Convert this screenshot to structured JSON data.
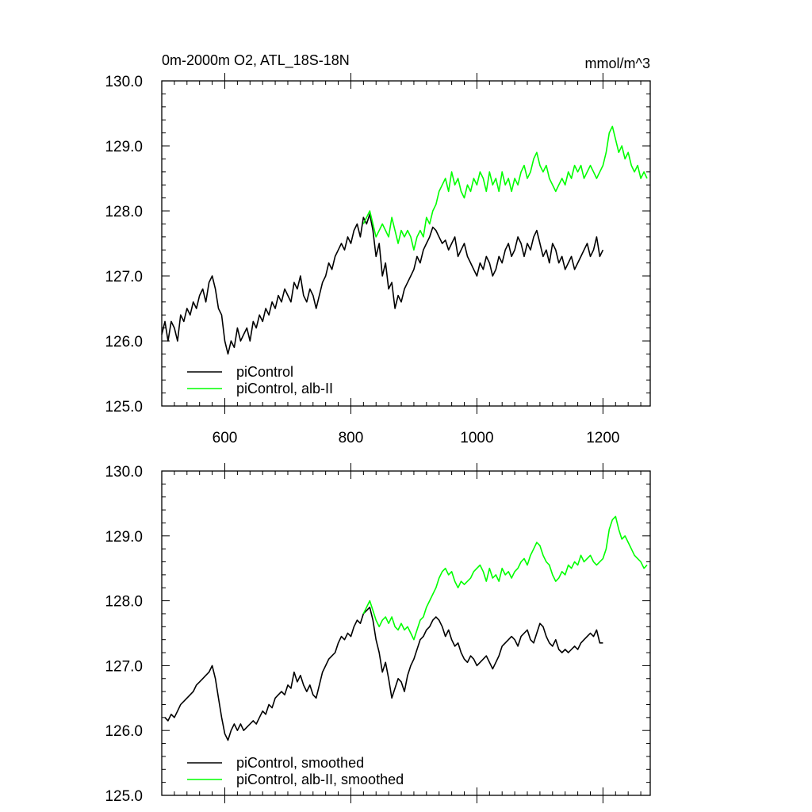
{
  "chart_data": [
    {
      "type": "line",
      "title": "0m-2000m O2, ATL_18S-18N",
      "units": "mmol/m^3",
      "xlim": [
        500,
        1275
      ],
      "ylim": [
        125.0,
        130.0
      ],
      "x_ticks": [
        600,
        800,
        1000,
        1200
      ],
      "x_tick_labels": [
        "600",
        "800",
        "1000",
        "1200"
      ],
      "y_ticks": [
        125.0,
        126.0,
        127.0,
        128.0,
        129.0,
        130.0
      ],
      "y_tick_labels": [
        "125.0",
        "126.0",
        "127.0",
        "128.0",
        "129.0",
        "130.0"
      ],
      "legend_position": "lower-left",
      "series": [
        {
          "name": "piControl",
          "color": "#000000",
          "x": [
            500,
            505,
            510,
            515,
            520,
            525,
            530,
            535,
            540,
            545,
            550,
            555,
            560,
            565,
            570,
            575,
            580,
            585,
            590,
            595,
            600,
            605,
            610,
            615,
            620,
            625,
            630,
            635,
            640,
            645,
            650,
            655,
            660,
            665,
            670,
            675,
            680,
            685,
            690,
            695,
            700,
            705,
            710,
            715,
            720,
            725,
            730,
            735,
            740,
            745,
            750,
            755,
            760,
            765,
            770,
            775,
            780,
            785,
            790,
            795,
            800,
            805,
            810,
            815,
            820,
            825,
            830,
            835,
            840,
            845,
            850,
            855,
            860,
            865,
            870,
            875,
            880,
            885,
            890,
            895,
            900,
            905,
            910,
            915,
            920,
            925,
            930,
            935,
            940,
            945,
            950,
            955,
            960,
            965,
            970,
            975,
            980,
            985,
            990,
            995,
            1000,
            1005,
            1010,
            1015,
            1020,
            1025,
            1030,
            1035,
            1040,
            1045,
            1050,
            1055,
            1060,
            1065,
            1070,
            1075,
            1080,
            1085,
            1090,
            1095,
            1100,
            1105,
            1110,
            1115,
            1120,
            1125,
            1130,
            1135,
            1140,
            1145,
            1150,
            1155,
            1160,
            1165,
            1170,
            1175,
            1180,
            1185,
            1190,
            1195,
            1200
          ],
          "y": [
            126.1,
            126.3,
            126.0,
            126.3,
            126.2,
            126.0,
            126.4,
            126.3,
            126.5,
            126.4,
            126.6,
            126.5,
            126.7,
            126.8,
            126.6,
            126.9,
            127.0,
            126.8,
            126.5,
            126.4,
            126.0,
            125.8,
            126.0,
            125.9,
            126.2,
            126.0,
            126.1,
            126.2,
            126.0,
            126.3,
            126.2,
            126.4,
            126.3,
            126.5,
            126.4,
            126.6,
            126.5,
            126.7,
            126.6,
            126.8,
            126.7,
            126.6,
            126.9,
            126.8,
            127.0,
            126.7,
            126.6,
            126.8,
            126.7,
            126.5,
            126.7,
            126.9,
            127.0,
            127.2,
            127.1,
            127.3,
            127.4,
            127.5,
            127.4,
            127.6,
            127.5,
            127.7,
            127.8,
            127.6,
            127.9,
            127.8,
            127.95,
            127.7,
            127.3,
            127.5,
            127.0,
            127.2,
            126.8,
            126.9,
            126.5,
            126.7,
            126.6,
            126.8,
            126.9,
            127.0,
            127.1,
            127.3,
            127.2,
            127.4,
            127.5,
            127.6,
            127.75,
            127.7,
            127.6,
            127.5,
            127.55,
            127.4,
            127.5,
            127.6,
            127.3,
            127.4,
            127.5,
            127.3,
            127.2,
            127.1,
            127.0,
            127.2,
            127.1,
            127.3,
            127.2,
            127.0,
            127.1,
            127.3,
            127.2,
            127.4,
            127.5,
            127.3,
            127.4,
            127.6,
            127.5,
            127.3,
            127.5,
            127.4,
            127.6,
            127.7,
            127.5,
            127.3,
            127.4,
            127.2,
            127.5,
            127.4,
            127.2,
            127.3,
            127.1,
            127.2,
            127.3,
            127.1,
            127.2,
            127.3,
            127.4,
            127.5,
            127.3,
            127.4,
            127.6,
            127.3,
            127.4
          ]
        },
        {
          "name": "piControl, alb-II",
          "color": "#00ff00",
          "x": [
            820,
            825,
            830,
            835,
            840,
            845,
            850,
            855,
            860,
            865,
            870,
            875,
            880,
            885,
            890,
            895,
            900,
            905,
            910,
            915,
            920,
            925,
            930,
            935,
            940,
            945,
            950,
            955,
            960,
            965,
            970,
            975,
            980,
            985,
            990,
            995,
            1000,
            1005,
            1010,
            1015,
            1020,
            1025,
            1030,
            1035,
            1040,
            1045,
            1050,
            1055,
            1060,
            1065,
            1070,
            1075,
            1080,
            1085,
            1090,
            1095,
            1100,
            1105,
            1110,
            1115,
            1120,
            1125,
            1130,
            1135,
            1140,
            1145,
            1150,
            1155,
            1160,
            1165,
            1170,
            1175,
            1180,
            1185,
            1190,
            1195,
            1200,
            1205,
            1210,
            1215,
            1220,
            1225,
            1230,
            1235,
            1240,
            1245,
            1250,
            1255,
            1260,
            1265,
            1270
          ],
          "y": [
            127.8,
            127.9,
            128.0,
            127.8,
            127.6,
            127.7,
            127.8,
            127.7,
            127.6,
            127.9,
            127.7,
            127.5,
            127.7,
            127.6,
            127.7,
            127.6,
            127.4,
            127.6,
            127.7,
            127.6,
            127.9,
            127.8,
            128.0,
            128.1,
            128.3,
            128.4,
            128.5,
            128.3,
            128.6,
            128.4,
            128.5,
            128.3,
            128.2,
            128.4,
            128.3,
            128.5,
            128.4,
            128.6,
            128.5,
            128.3,
            128.6,
            128.4,
            128.5,
            128.3,
            128.6,
            128.4,
            128.5,
            128.3,
            128.5,
            128.4,
            128.6,
            128.7,
            128.5,
            128.6,
            128.8,
            128.9,
            128.7,
            128.6,
            128.7,
            128.5,
            128.4,
            128.3,
            128.4,
            128.5,
            128.4,
            128.6,
            128.5,
            128.7,
            128.6,
            128.7,
            128.5,
            128.6,
            128.7,
            128.6,
            128.5,
            128.6,
            128.7,
            128.9,
            129.2,
            129.3,
            129.1,
            128.9,
            129.0,
            128.8,
            128.9,
            128.7,
            128.6,
            128.7,
            128.5,
            128.6,
            128.5
          ]
        }
      ]
    },
    {
      "type": "line",
      "xlim": [
        500,
        1275
      ],
      "ylim": [
        125.0,
        130.0
      ],
      "x_ticks": [
        600,
        800,
        1000,
        1200
      ],
      "y_ticks": [
        125.0,
        126.0,
        127.0,
        128.0,
        129.0,
        130.0
      ],
      "y_tick_labels": [
        "125.0",
        "126.0",
        "127.0",
        "128.0",
        "129.0",
        "130.0"
      ],
      "legend_position": "lower-left",
      "series": [
        {
          "name": "piControl, smoothed",
          "color": "#000000",
          "x": [
            505,
            510,
            515,
            520,
            525,
            530,
            535,
            540,
            545,
            550,
            555,
            560,
            565,
            570,
            575,
            580,
            585,
            590,
            595,
            600,
            605,
            610,
            615,
            620,
            625,
            630,
            635,
            640,
            645,
            650,
            655,
            660,
            665,
            670,
            675,
            680,
            685,
            690,
            695,
            700,
            705,
            710,
            715,
            720,
            725,
            730,
            735,
            740,
            745,
            750,
            755,
            760,
            765,
            770,
            775,
            780,
            785,
            790,
            795,
            800,
            805,
            810,
            815,
            820,
            825,
            830,
            835,
            840,
            845,
            850,
            855,
            860,
            865,
            870,
            875,
            880,
            885,
            890,
            895,
            900,
            905,
            910,
            915,
            920,
            925,
            930,
            935,
            940,
            945,
            950,
            955,
            960,
            965,
            970,
            975,
            980,
            985,
            990,
            995,
            1000,
            1005,
            1010,
            1015,
            1020,
            1025,
            1030,
            1035,
            1040,
            1045,
            1050,
            1055,
            1060,
            1065,
            1070,
            1075,
            1080,
            1085,
            1090,
            1095,
            1100,
            1105,
            1110,
            1115,
            1120,
            1125,
            1130,
            1135,
            1140,
            1145,
            1150,
            1155,
            1160,
            1165,
            1170,
            1175,
            1180,
            1185,
            1190,
            1195,
            1200
          ],
          "y": [
            126.2,
            126.15,
            126.25,
            126.2,
            126.3,
            126.4,
            126.45,
            126.5,
            126.55,
            126.6,
            126.7,
            126.75,
            126.8,
            126.85,
            126.9,
            127.0,
            126.8,
            126.5,
            126.2,
            125.95,
            125.85,
            126.0,
            126.1,
            126.0,
            126.1,
            126.0,
            126.05,
            126.1,
            126.15,
            126.1,
            126.2,
            126.3,
            126.25,
            126.4,
            126.35,
            126.5,
            126.55,
            126.6,
            126.55,
            126.7,
            126.65,
            126.9,
            126.75,
            126.85,
            126.7,
            126.6,
            126.7,
            126.55,
            126.5,
            126.7,
            126.9,
            127.0,
            127.1,
            127.15,
            127.2,
            127.35,
            127.45,
            127.4,
            127.5,
            127.45,
            127.6,
            127.7,
            127.65,
            127.8,
            127.85,
            127.9,
            127.7,
            127.4,
            127.2,
            126.9,
            127.05,
            126.8,
            126.5,
            126.65,
            126.8,
            126.75,
            126.6,
            126.85,
            127.0,
            127.1,
            127.25,
            127.4,
            127.45,
            127.55,
            127.6,
            127.7,
            127.75,
            127.7,
            127.6,
            127.45,
            127.55,
            127.4,
            127.3,
            127.35,
            127.2,
            127.1,
            127.05,
            127.15,
            127.1,
            127.0,
            127.05,
            127.1,
            127.15,
            127.05,
            126.95,
            127.05,
            127.15,
            127.3,
            127.35,
            127.4,
            127.45,
            127.4,
            127.3,
            127.45,
            127.5,
            127.55,
            127.4,
            127.35,
            127.5,
            127.65,
            127.6,
            127.45,
            127.35,
            127.3,
            127.4,
            127.25,
            127.2,
            127.25,
            127.2,
            127.25,
            127.3,
            127.25,
            127.35,
            127.4,
            127.45,
            127.5,
            127.45,
            127.55,
            127.35,
            127.35
          ]
        },
        {
          "name": "piControl, alb-II, smoothed",
          "color": "#00ff00",
          "x": [
            820,
            825,
            830,
            835,
            840,
            845,
            850,
            855,
            860,
            865,
            870,
            875,
            880,
            885,
            890,
            895,
            900,
            905,
            910,
            915,
            920,
            925,
            930,
            935,
            940,
            945,
            950,
            955,
            960,
            965,
            970,
            975,
            980,
            985,
            990,
            995,
            1000,
            1005,
            1010,
            1015,
            1020,
            1025,
            1030,
            1035,
            1040,
            1045,
            1050,
            1055,
            1060,
            1065,
            1070,
            1075,
            1080,
            1085,
            1090,
            1095,
            1100,
            1105,
            1110,
            1115,
            1120,
            1125,
            1130,
            1135,
            1140,
            1145,
            1150,
            1155,
            1160,
            1165,
            1170,
            1175,
            1180,
            1185,
            1190,
            1195,
            1200,
            1205,
            1210,
            1215,
            1220,
            1225,
            1230,
            1235,
            1240,
            1245,
            1250,
            1255,
            1260,
            1265,
            1270
          ],
          "y": [
            127.8,
            127.9,
            128.0,
            127.85,
            127.7,
            127.6,
            127.7,
            127.75,
            127.65,
            127.75,
            127.6,
            127.55,
            127.65,
            127.55,
            127.6,
            127.5,
            127.4,
            127.55,
            127.7,
            127.75,
            127.9,
            128.0,
            128.1,
            128.2,
            128.35,
            128.45,
            128.5,
            128.4,
            128.45,
            128.3,
            128.2,
            128.3,
            128.25,
            128.3,
            128.35,
            128.45,
            128.5,
            128.55,
            128.45,
            128.3,
            128.5,
            128.35,
            128.4,
            128.3,
            128.5,
            128.4,
            128.45,
            128.35,
            128.45,
            128.5,
            128.6,
            128.65,
            128.55,
            128.7,
            128.8,
            128.9,
            128.85,
            128.7,
            128.6,
            128.55,
            128.4,
            128.3,
            128.35,
            128.45,
            128.4,
            128.55,
            128.5,
            128.6,
            128.55,
            128.7,
            128.6,
            128.65,
            128.7,
            128.6,
            128.55,
            128.6,
            128.65,
            128.8,
            129.1,
            129.25,
            129.3,
            129.1,
            128.95,
            129.0,
            128.9,
            128.8,
            128.7,
            128.65,
            128.6,
            128.5,
            128.55
          ]
        }
      ]
    }
  ]
}
